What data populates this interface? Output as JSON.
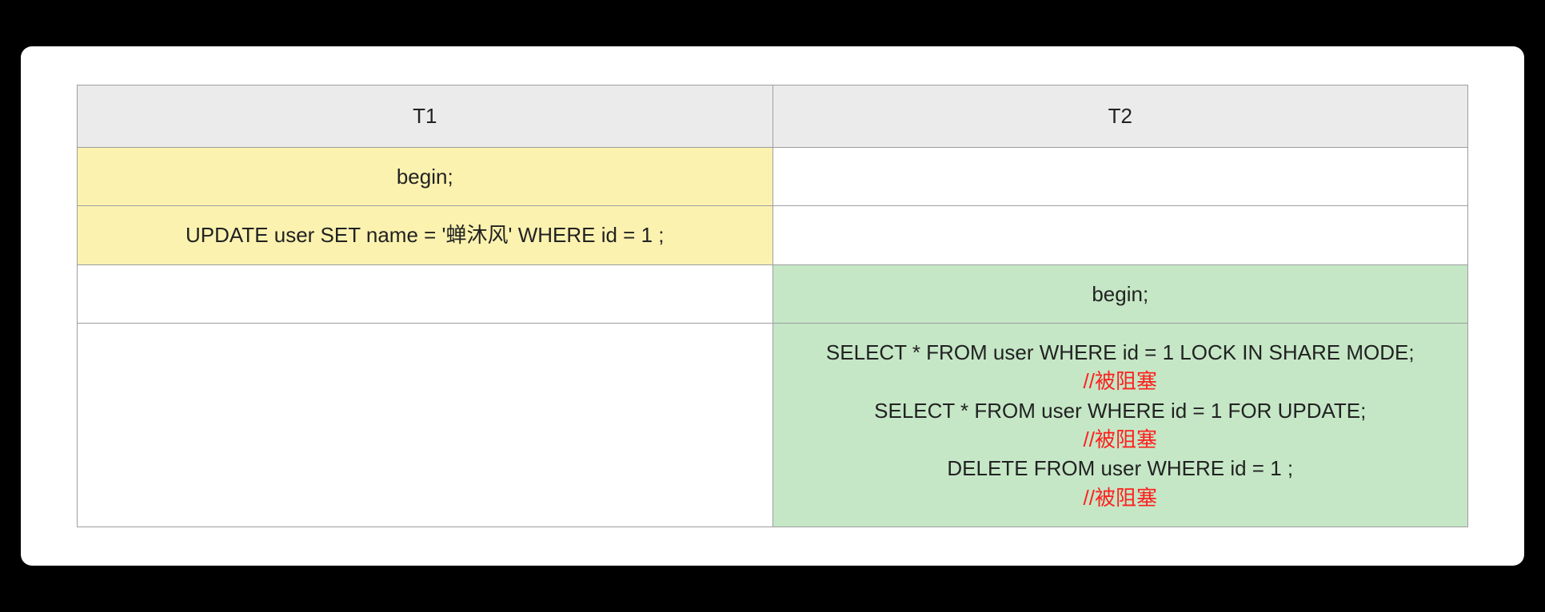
{
  "table": {
    "type": "table",
    "columns": [
      "T1",
      "T2"
    ],
    "header_bg": "#ebebeb",
    "border_color": "#9e9e9e",
    "card_bg": "#ffffff",
    "page_bg": "#000000",
    "fontsize": 26,
    "cell_colors": {
      "yellow": "#fbf2af",
      "green": "#c5e7c6",
      "white": "#ffffff",
      "red_text": "#ff1f1f",
      "text": "#222222"
    },
    "rows": [
      {
        "t1": {
          "text": "begin;",
          "bg": "yellow"
        },
        "t2": {
          "text": "",
          "bg": "white"
        }
      },
      {
        "t1": {
          "text": "UPDATE user SET name = '蝉沐风' WHERE id = 1 ;",
          "bg": "yellow"
        },
        "t2": {
          "text": "",
          "bg": "white"
        }
      },
      {
        "t1": {
          "text": "",
          "bg": "white"
        },
        "t2": {
          "text": "begin;",
          "bg": "green"
        }
      },
      {
        "t1": {
          "text": "",
          "bg": "white"
        },
        "t2": {
          "bg": "green",
          "lines": [
            {
              "text": "SELECT * FROM user WHERE id = 1 LOCK IN SHARE MODE;",
              "red": false
            },
            {
              "text": "//被阻塞",
              "red": true
            },
            {
              "text": "SELECT * FROM user WHERE id = 1 FOR UPDATE;",
              "red": false
            },
            {
              "text": "//被阻塞",
              "red": true
            },
            {
              "text": "DELETE FROM user WHERE id = 1 ;",
              "red": false
            },
            {
              "text": "//被阻塞",
              "red": true
            }
          ]
        }
      }
    ]
  }
}
